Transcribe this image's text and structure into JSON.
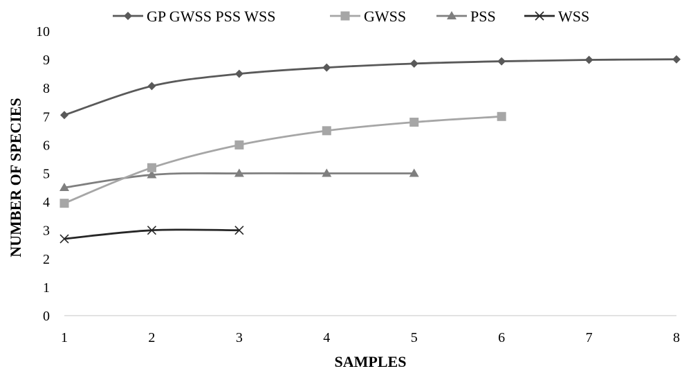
{
  "chart_data": {
    "type": "line",
    "xlabel": "SAMPLES",
    "ylabel": "NUMBER OF SPECIES",
    "xlim": [
      1,
      8
    ],
    "ylim": [
      0,
      10
    ],
    "x_ticks": [
      "1",
      "2",
      "3",
      "4",
      "5",
      "6",
      "7",
      "8"
    ],
    "y_ticks": [
      "0",
      "1",
      "2",
      "3",
      "4",
      "5",
      "6",
      "7",
      "8",
      "9",
      "10"
    ],
    "grid": false,
    "legend_position": "top",
    "series": [
      {
        "name": "GP GWSS PSS WSS",
        "marker": "diamond",
        "color": "#595959",
        "x": [
          1,
          2,
          3,
          4,
          5,
          6,
          7,
          8
        ],
        "y": [
          7.05,
          8.07,
          8.5,
          8.72,
          8.86,
          8.94,
          8.99,
          9.01
        ]
      },
      {
        "name": "GWSS",
        "marker": "square",
        "color": "#a6a6a6",
        "x": [
          1,
          2,
          3,
          4,
          5,
          6
        ],
        "y": [
          3.95,
          5.2,
          6.0,
          6.5,
          6.8,
          7.0
        ]
      },
      {
        "name": "PSS",
        "marker": "triangle",
        "color": "#7f7f7f",
        "x": [
          1,
          2,
          3,
          4,
          5
        ],
        "y": [
          4.5,
          4.95,
          5.0,
          5.0,
          5.0
        ]
      },
      {
        "name": "WSS",
        "marker": "x",
        "color": "#262626",
        "x": [
          1,
          2,
          3
        ],
        "y": [
          2.7,
          3.0,
          3.0
        ]
      }
    ]
  }
}
